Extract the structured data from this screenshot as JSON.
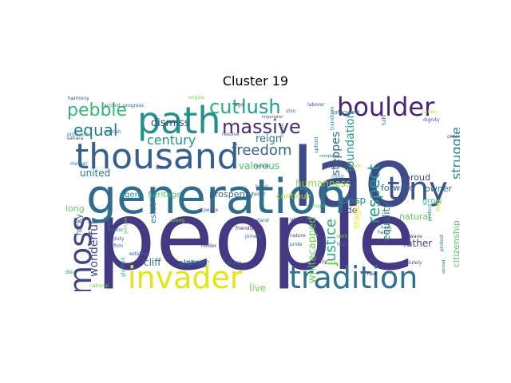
{
  "chart_data": {
    "type": "wordcloud",
    "title": "Cluster 19",
    "words": [
      {
        "text": "people",
        "color": "#443a83"
      },
      {
        "text": "lao",
        "color": "#3f4a8a"
      },
      {
        "text": "generation",
        "color": "#2f6c8e"
      },
      {
        "text": "thousand",
        "color": "#355f8d"
      },
      {
        "text": "path",
        "color": "#21918c"
      },
      {
        "text": "boulder",
        "color": "#482475"
      },
      {
        "text": "invader",
        "color": "#e5e419"
      },
      {
        "text": "tradition",
        "color": "#2c728e"
      },
      {
        "text": "tiny",
        "color": "#3b528b"
      },
      {
        "text": "moss",
        "color": "#414487"
      },
      {
        "text": "massive",
        "color": "#472d7b"
      },
      {
        "text": "cut",
        "color": "#28ae80"
      },
      {
        "text": "lush",
        "color": "#1f9e89"
      },
      {
        "text": "pebble",
        "color": "#35b779"
      },
      {
        "text": "equal",
        "color": "#2a788e"
      },
      {
        "text": "freedom",
        "color": "#31688e"
      },
      {
        "text": "century",
        "color": "#1f968b"
      },
      {
        "text": "respect",
        "color": "#1fa188"
      },
      {
        "text": "justice",
        "color": "#22a884"
      },
      {
        "text": "struggle",
        "color": "#287d8e"
      },
      {
        "text": "foundation",
        "color": "#1e9b8a"
      },
      {
        "text": "steppes",
        "color": "#33638d"
      },
      {
        "text": "whitecapped",
        "color": "#6ece58"
      },
      {
        "text": "wonderful",
        "color": "#3e4989"
      },
      {
        "text": "dismiss",
        "color": "#3d4e8a"
      },
      {
        "text": "reign",
        "color": "#297a8e"
      },
      {
        "text": "valorous",
        "color": "#4ac16d"
      },
      {
        "text": "united",
        "color": "#2a778e"
      },
      {
        "text": "humanness",
        "color": "#8fd744"
      },
      {
        "text": "forward",
        "color": "#355e8d"
      },
      {
        "text": "proud",
        "color": "#3e4a89"
      },
      {
        "text": "owner",
        "color": "#2d708e"
      },
      {
        "text": "grow",
        "color": "#3dbc74"
      },
      {
        "text": "clasp",
        "color": "#25848e"
      },
      {
        "text": "equality",
        "color": "#2e6f8e"
      },
      {
        "text": "natural",
        "color": "#5ec962"
      },
      {
        "text": "citizenship",
        "color": "#56c667"
      },
      {
        "text": "agent",
        "color": "#1f988b"
      },
      {
        "text": "heritage",
        "color": "#50c46a"
      },
      {
        "text": "prosperity",
        "color": "#38598c"
      },
      {
        "text": "continue",
        "color": "#b8de29"
      },
      {
        "text": "side",
        "color": "#404688"
      },
      {
        "text": "stage",
        "color": "#fde725"
      },
      {
        "text": "establish",
        "color": "#2c738e"
      },
      {
        "text": "rocky",
        "color": "#34608d"
      },
      {
        "text": "long",
        "color": "#65cb5e"
      },
      {
        "text": "cliff",
        "color": "#2d718e"
      },
      {
        "text": "alatoo",
        "color": "#33628d"
      },
      {
        "text": "live",
        "color": "#77d153"
      },
      {
        "text": "father",
        "color": "#443b84"
      },
      {
        "text": "harmony",
        "color": "#3a538b"
      },
      {
        "text": "accord",
        "color": "#2c718e"
      },
      {
        "text": "progress",
        "color": "#2e6d8e"
      },
      {
        "text": "origins",
        "color": "#75d054"
      },
      {
        "text": "laborer",
        "color": "#3c4f8a"
      },
      {
        "text": "ago",
        "color": "#46337f"
      },
      {
        "text": "imperialist",
        "color": "#3b518b"
      },
      {
        "text": "shin",
        "color": "#2d708e"
      },
      {
        "text": "safeguard",
        "color": "#2a788e"
      },
      {
        "text": "nation",
        "color": "#9dd93b"
      },
      {
        "text": "dignity",
        "color": "#38598c"
      },
      {
        "text": "order",
        "color": "#404588"
      },
      {
        "text": "fulfil",
        "color": "#2e6e8e"
      },
      {
        "text": "proclaim",
        "color": "#238a8d"
      },
      {
        "text": "sahara",
        "color": "#39558c"
      },
      {
        "text": "cherish",
        "color": "#26818e"
      },
      {
        "text": "heroic",
        "color": "#287c8e"
      },
      {
        "text": "resolve",
        "color": "#3d4d8a"
      },
      {
        "text": "transform",
        "color": "#24868e"
      },
      {
        "text": "uphold",
        "color": "#2b748e"
      },
      {
        "text": "complete",
        "color": "#2c718e"
      },
      {
        "text": "reveal",
        "color": "#365c8d"
      },
      {
        "text": "mother",
        "color": "#2b748e"
      },
      {
        "text": "wave",
        "color": "#3a548c"
      },
      {
        "text": "mind",
        "color": "#20928c"
      },
      {
        "text": "head",
        "color": "#30698e"
      },
      {
        "text": "raider",
        "color": "#2f6b8e"
      },
      {
        "text": "hard",
        "color": "#c2df23"
      },
      {
        "text": "sight",
        "color": "#a2da37"
      },
      {
        "text": "peace",
        "color": "#3b528b"
      },
      {
        "text": "strong",
        "color": "#84d44b"
      },
      {
        "text": "traitor",
        "color": "#2d718e"
      },
      {
        "text": "friendly",
        "color": "#48186a"
      },
      {
        "text": "duty",
        "color": "#2b758e"
      },
      {
        "text": "joinery",
        "color": "#2e6f8e"
      },
      {
        "text": "firm",
        "color": "#39568c"
      },
      {
        "text": "holder",
        "color": "#42408a"
      },
      {
        "text": "peruse",
        "color": "#5ac864"
      },
      {
        "text": "stand",
        "color": "#31678e"
      },
      {
        "text": "viger",
        "color": "#3b528b"
      },
      {
        "text": "nature",
        "color": "#414287"
      },
      {
        "text": "pride",
        "color": "#2c728e"
      },
      {
        "text": "acquire",
        "color": "#46307e"
      },
      {
        "text": "march",
        "color": "#52c569"
      },
      {
        "text": "work",
        "color": "#6ccd5a"
      },
      {
        "text": "hop",
        "color": "#2e6e8e"
      },
      {
        "text": "entire",
        "color": "#433d84"
      },
      {
        "text": "protect",
        "color": "#25858e"
      },
      {
        "text": "hero",
        "color": "#21918c"
      },
      {
        "text": "hand",
        "color": "#2c738e"
      },
      {
        "text": "wave",
        "color": "#443983"
      },
      {
        "text": "resolutely",
        "color": "#3f4788"
      },
      {
        "text": "raid",
        "color": "#481a6c"
      },
      {
        "text": "aspiration",
        "color": "#34608d"
      },
      {
        "text": "grace",
        "color": "#2c718e"
      },
      {
        "text": "estates",
        "color": "#38598c"
      },
      {
        "text": "glorified",
        "color": "#1f9a8a"
      },
      {
        "text": "national",
        "color": "#67cc5c"
      },
      {
        "text": "countless",
        "color": "#2c738e"
      },
      {
        "text": "submission",
        "color": "#3e4c8a"
      },
      {
        "text": "die",
        "color": "#1f958b"
      },
      {
        "text": "protest",
        "color": "#2b758e"
      },
      {
        "text": "cover",
        "color": "#cae11f"
      },
      {
        "text": "abroad",
        "color": "#2c728e"
      }
    ]
  }
}
